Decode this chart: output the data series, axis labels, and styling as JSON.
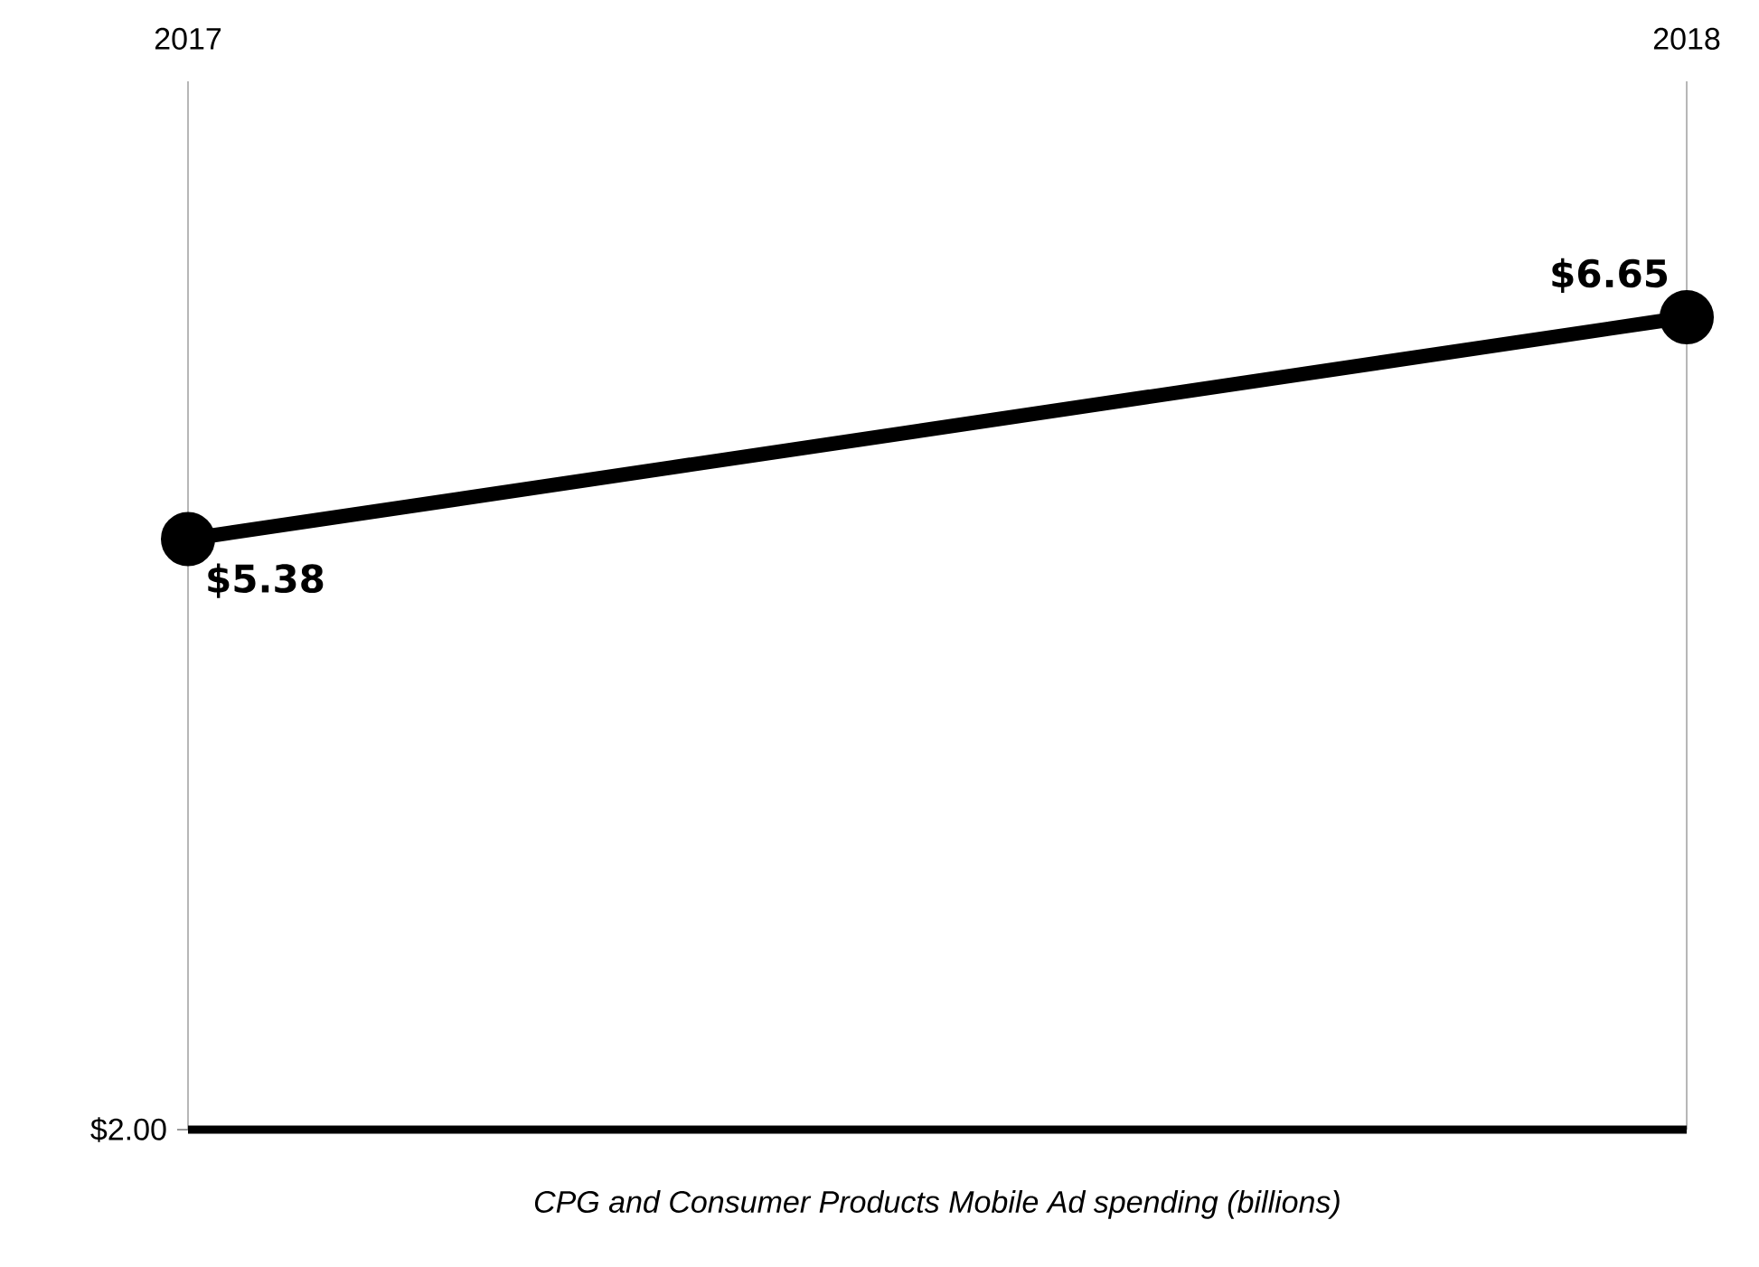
{
  "chart_data": {
    "type": "line",
    "xlabel": "CPG and Consumer Products Mobile Ad spending  (billions)",
    "categories": [
      "2017",
      "2018"
    ],
    "series": [
      {
        "color": "#000000",
        "values": [
          5.38,
          6.65
        ],
        "value_labels": [
          "$5.38",
          "$6.65"
        ]
      }
    ],
    "ylim": [
      2,
      8
    ],
    "ref_lines": [
      {
        "axis": "y",
        "value": 2,
        "label": "$2.00",
        "color": "#000000"
      }
    ],
    "grid": "x",
    "marker": "circle",
    "line_style": "solid"
  }
}
